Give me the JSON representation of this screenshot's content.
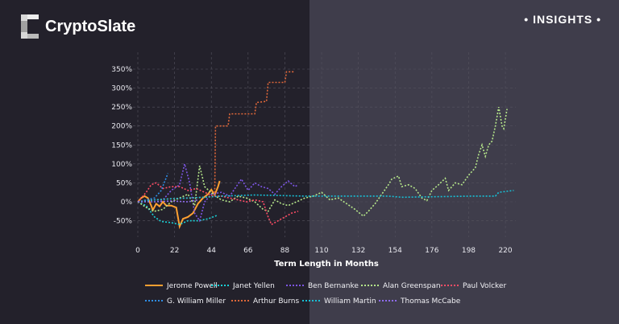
{
  "header": {
    "brand": "CryptoSlate",
    "tag": "• INSIGHTS •"
  },
  "colors": {
    "bg_left": "#23212b",
    "bg_right": "#3f3d4b"
  },
  "chart_data": {
    "type": "line",
    "title": "",
    "xlabel": "Term Length in Months",
    "ylabel": "",
    "xlim": [
      0,
      225
    ],
    "ylim": [
      -85,
      375
    ],
    "grid": true,
    "legend_position": "bottom",
    "x_ticks": [
      "0",
      "22",
      "44",
      "66",
      "88",
      "110",
      "132",
      "154",
      "176",
      "198",
      "220"
    ],
    "x_tick_values": [
      0,
      22,
      44,
      66,
      88,
      110,
      132,
      154,
      176,
      198,
      220
    ],
    "y_ticks": [
      "-50%",
      "0%",
      "50%",
      "100%",
      "150%",
      "200%",
      "250%",
      "300%",
      "350%"
    ],
    "y_tick_values": [
      -50,
      0,
      50,
      100,
      150,
      200,
      250,
      300,
      350
    ],
    "series": [
      {
        "name": "Jerome Powell",
        "color": "#ffa031",
        "dash": "solid",
        "points": [
          [
            0,
            0
          ],
          [
            2,
            10
          ],
          [
            4,
            15
          ],
          [
            6,
            10
          ],
          [
            8,
            -10
          ],
          [
            9,
            -22
          ],
          [
            11,
            -5
          ],
          [
            13,
            -12
          ],
          [
            15,
            0
          ],
          [
            17,
            -10
          ],
          [
            20,
            -10
          ],
          [
            23,
            -15
          ],
          [
            25,
            -65
          ],
          [
            27,
            -45
          ],
          [
            30,
            -40
          ],
          [
            33,
            -30
          ],
          [
            36,
            -5
          ],
          [
            39,
            10
          ],
          [
            42,
            20
          ],
          [
            44,
            32
          ],
          [
            46,
            18
          ],
          [
            48,
            40
          ],
          [
            49,
            55
          ]
        ]
      },
      {
        "name": "Janet Yellen",
        "color": "#1ad1d6",
        "dash": "dot",
        "points": [
          [
            0,
            0
          ],
          [
            5,
            -10
          ],
          [
            10,
            -40
          ],
          [
            14,
            -52
          ],
          [
            20,
            -55
          ],
          [
            25,
            -60
          ],
          [
            30,
            -50
          ],
          [
            36,
            -50
          ],
          [
            42,
            -45
          ],
          [
            48,
            -35
          ]
        ]
      },
      {
        "name": "Ben Bernanke",
        "color": "#7d56e6",
        "dash": "dot",
        "points": [
          [
            0,
            0
          ],
          [
            10,
            5
          ],
          [
            15,
            5
          ],
          [
            20,
            30
          ],
          [
            25,
            45
          ],
          [
            28,
            100
          ],
          [
            31,
            50
          ],
          [
            34,
            -30
          ],
          [
            37,
            -50
          ],
          [
            40,
            0
          ],
          [
            44,
            20
          ],
          [
            50,
            25
          ],
          [
            55,
            15
          ],
          [
            62,
            60
          ],
          [
            66,
            30
          ],
          [
            70,
            50
          ],
          [
            74,
            40
          ],
          [
            78,
            35
          ],
          [
            82,
            20
          ],
          [
            86,
            40
          ],
          [
            90,
            55
          ],
          [
            94,
            40
          ],
          [
            96,
            45
          ]
        ]
      },
      {
        "name": "Alan Greenspan",
        "color": "#b5e68a",
        "dash": "dot",
        "points": [
          [
            0,
            0
          ],
          [
            5,
            -15
          ],
          [
            10,
            -25
          ],
          [
            15,
            -20
          ],
          [
            20,
            0
          ],
          [
            25,
            10
          ],
          [
            30,
            20
          ],
          [
            34,
            -10
          ],
          [
            37,
            95
          ],
          [
            40,
            40
          ],
          [
            45,
            20
          ],
          [
            50,
            5
          ],
          [
            55,
            0
          ],
          [
            60,
            15
          ],
          [
            65,
            10
          ],
          [
            70,
            0
          ],
          [
            75,
            -20
          ],
          [
            78,
            -25
          ],
          [
            82,
            5
          ],
          [
            86,
            -5
          ],
          [
            90,
            -10
          ],
          [
            95,
            0
          ],
          [
            100,
            10
          ],
          [
            105,
            15
          ],
          [
            110,
            25
          ],
          [
            115,
            5
          ],
          [
            120,
            10
          ],
          [
            125,
            -5
          ],
          [
            130,
            -20
          ],
          [
            135,
            -38
          ],
          [
            138,
            -25
          ],
          [
            142,
            -5
          ],
          [
            146,
            20
          ],
          [
            150,
            45
          ],
          [
            152,
            60
          ],
          [
            156,
            68
          ],
          [
            158,
            40
          ],
          [
            162,
            45
          ],
          [
            166,
            35
          ],
          [
            170,
            10
          ],
          [
            173,
            3
          ],
          [
            176,
            30
          ],
          [
            180,
            45
          ],
          [
            184,
            62
          ],
          [
            186,
            30
          ],
          [
            190,
            50
          ],
          [
            194,
            45
          ],
          [
            198,
            70
          ],
          [
            202,
            90
          ],
          [
            204,
            125
          ],
          [
            206,
            150
          ],
          [
            208,
            120
          ],
          [
            210,
            150
          ],
          [
            212,
            160
          ],
          [
            214,
            200
          ],
          [
            216,
            250
          ],
          [
            218,
            200
          ],
          [
            219,
            193
          ],
          [
            221,
            245
          ]
        ]
      },
      {
        "name": "Paul Volcker",
        "color": "#ff4d66",
        "dash": "dot",
        "points": [
          [
            0,
            0
          ],
          [
            5,
            25
          ],
          [
            8,
            45
          ],
          [
            11,
            50
          ],
          [
            15,
            35
          ],
          [
            20,
            40
          ],
          [
            25,
            40
          ],
          [
            30,
            30
          ],
          [
            35,
            35
          ],
          [
            40,
            25
          ],
          [
            45,
            15
          ],
          [
            50,
            15
          ],
          [
            55,
            10
          ],
          [
            60,
            5
          ],
          [
            65,
            0
          ],
          [
            70,
            5
          ],
          [
            75,
            0
          ],
          [
            78,
            -40
          ],
          [
            80,
            -60
          ],
          [
            84,
            -50
          ],
          [
            88,
            -40
          ],
          [
            92,
            -30
          ],
          [
            96,
            -25
          ]
        ]
      },
      {
        "name": "G. William Miller",
        "color": "#2f8ee6",
        "dash": "dot",
        "points": [
          [
            0,
            0
          ],
          [
            5,
            5
          ],
          [
            10,
            10
          ],
          [
            14,
            30
          ],
          [
            18,
            75
          ]
        ]
      },
      {
        "name": "Arthur Burns",
        "color": "#e0683a",
        "dash": "dot",
        "points": [
          [
            0,
            0
          ],
          [
            10,
            5
          ],
          [
            20,
            8
          ],
          [
            30,
            10
          ],
          [
            40,
            12
          ],
          [
            46,
            15
          ],
          [
            46.5,
            200
          ],
          [
            54,
            200
          ],
          [
            55,
            232
          ],
          [
            70,
            232
          ],
          [
            71,
            262
          ],
          [
            77,
            265
          ],
          [
            78,
            315
          ],
          [
            88,
            315
          ],
          [
            89,
            343
          ],
          [
            94,
            343
          ]
        ]
      },
      {
        "name": "William Martin",
        "color": "#17c0d6",
        "dash": "dot",
        "points": [
          [
            0,
            0
          ],
          [
            10,
            5
          ],
          [
            20,
            8
          ],
          [
            30,
            10
          ],
          [
            40,
            12
          ],
          [
            50,
            15
          ],
          [
            70,
            18
          ],
          [
            100,
            15
          ],
          [
            150,
            15
          ],
          [
            158,
            12
          ],
          [
            200,
            15
          ],
          [
            214,
            15
          ],
          [
            216,
            25
          ],
          [
            225,
            30
          ]
        ]
      },
      {
        "name": "Thomas McCabe",
        "color": "#8f6cf0",
        "dash": "dot",
        "points": [
          [
            0,
            0
          ],
          [
            10,
            0
          ],
          [
            20,
            2
          ],
          [
            30,
            0
          ],
          [
            36,
            5
          ]
        ]
      }
    ]
  }
}
